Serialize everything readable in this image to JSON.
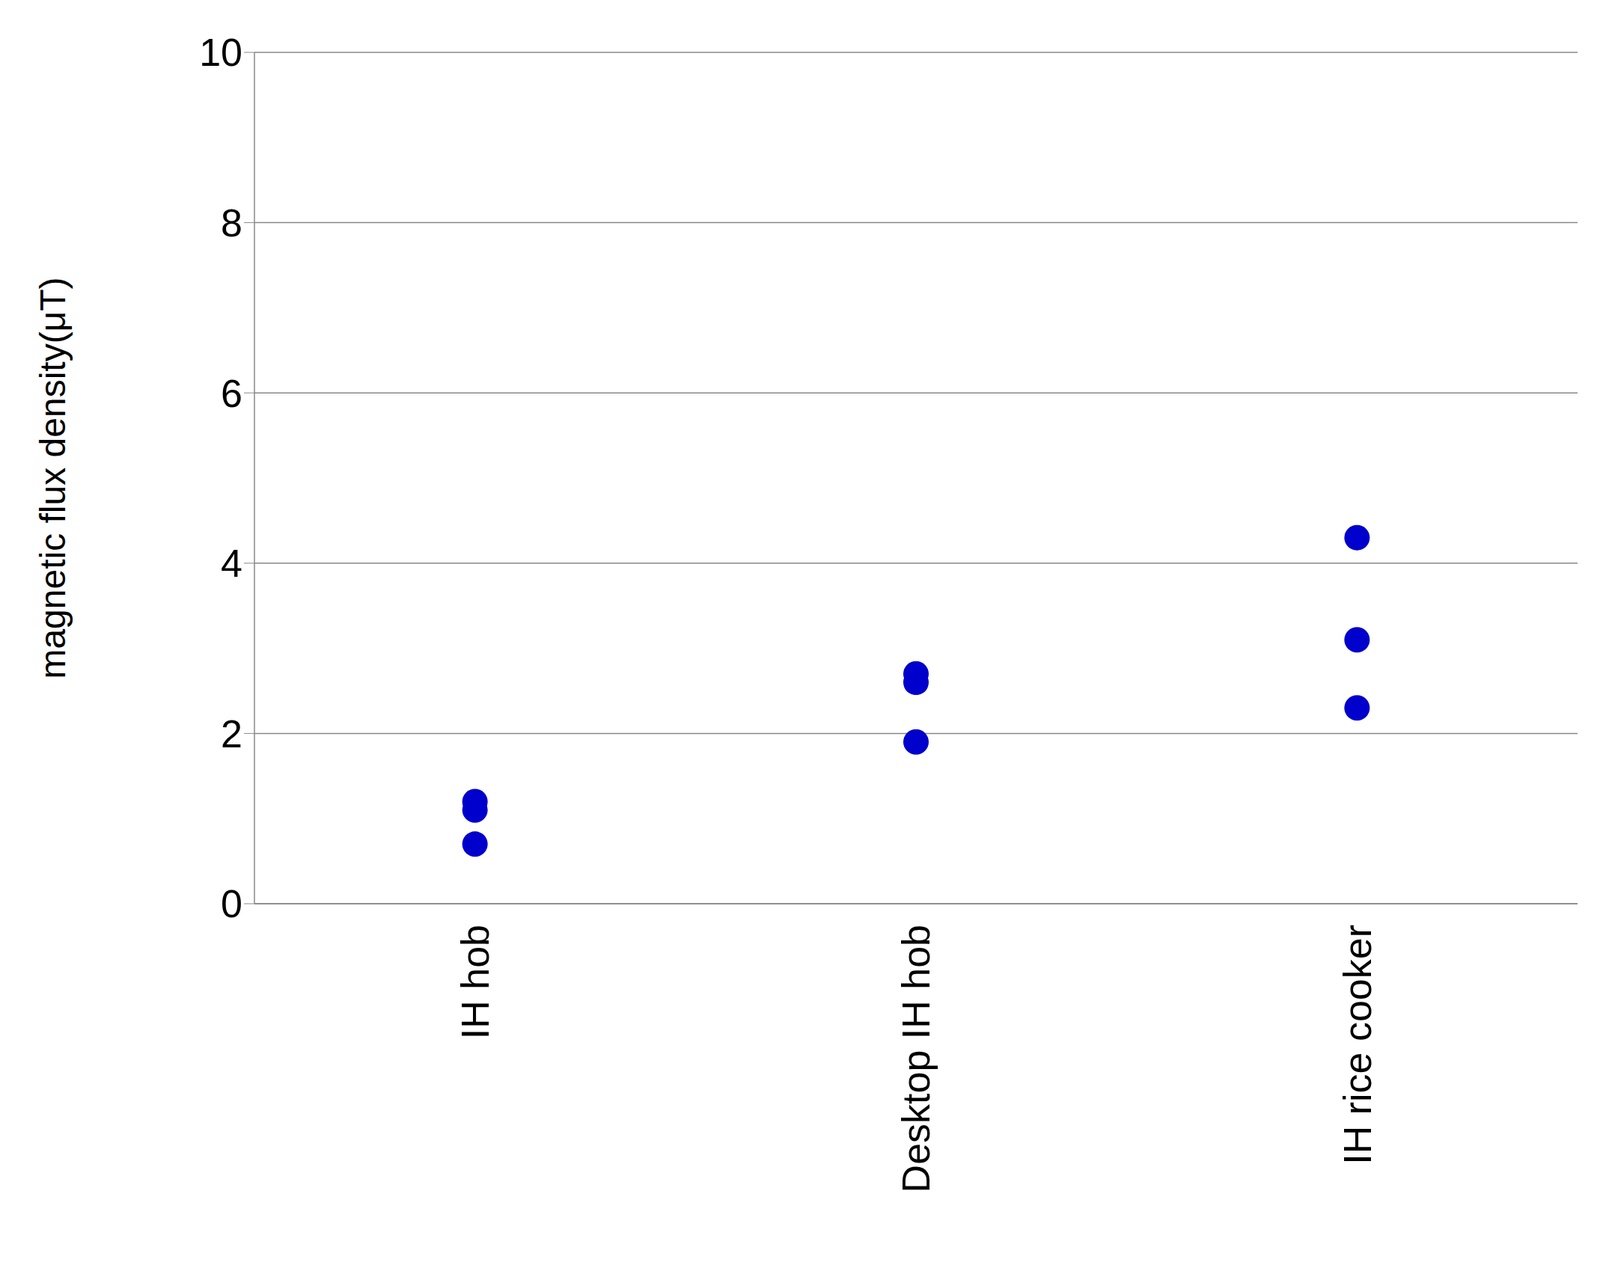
{
  "chart_data": {
    "type": "scatter",
    "y_label": "magnetic flux density(μT)",
    "categories": [
      "IH hob",
      "Desktop IH hob",
      "IH rice cooker"
    ],
    "values": [
      [
        1.2,
        1.1,
        0.7
      ],
      [
        2.7,
        2.6,
        1.9
      ],
      [
        4.3,
        3.1,
        2.3
      ]
    ],
    "color": "#0000cc",
    "marker": "circle",
    "ylim": [
      0,
      10
    ],
    "yticks": [
      0,
      2,
      4,
      6,
      8,
      10
    ],
    "grid": true
  }
}
